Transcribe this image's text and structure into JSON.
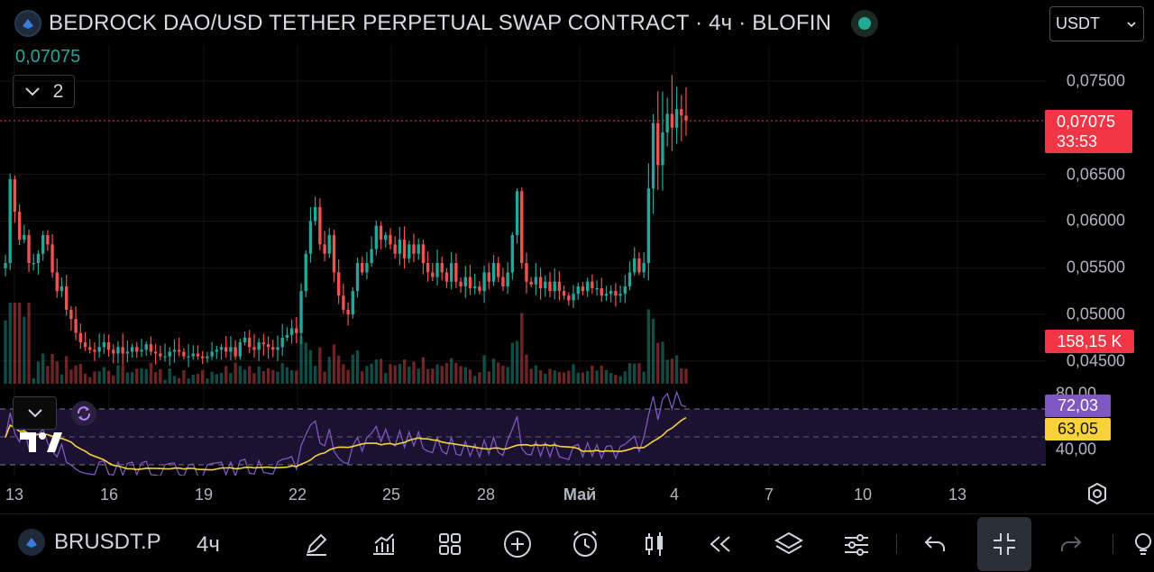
{
  "header": {
    "title": "BEDROCK DAO/USD TETHER PERPETUAL SWAP CONTRACT · 4ч · BLOFIN",
    "last_price": "0,07075",
    "collapse_count": "2",
    "currency": "USDT",
    "market_status_icon": "market-open-dot",
    "status_color": "#22ab94"
  },
  "price_axis": {
    "labels": [
      "0,07500",
      "0,06500",
      "0,06000",
      "0,05500",
      "0,05000",
      "0,04500"
    ],
    "current_price": "0,07075",
    "countdown": "33:53",
    "volume": "158,15 K"
  },
  "rsi": {
    "value": "72,03",
    "ma_value": "63,05",
    "levels": [
      "80,00",
      "40,00"
    ],
    "rsi_color": "#7e57c2",
    "ma_color": "#f7d23a"
  },
  "time_axis": {
    "labels": [
      "13",
      "16",
      "19",
      "22",
      "25",
      "28",
      "Май",
      "4",
      "7",
      "10",
      "13"
    ]
  },
  "toolbar": {
    "symbol": "BRUSDT.P",
    "interval": "4ч",
    "tools": [
      "pencil-icon",
      "indicators-icon",
      "layouts-icon",
      "add-icon",
      "alert-icon",
      "candles-icon",
      "replay-icon",
      "layers-icon",
      "settings-icon",
      "undo-icon",
      "fullscreen-exit-icon",
      "redo-icon",
      "idea-icon"
    ]
  },
  "colors": {
    "up": "#26a69a",
    "down": "#ef5350",
    "background": "#000000",
    "current_line": "#f23645"
  },
  "chart_data": {
    "type": "candlestick",
    "title": "BEDROCK DAO/USD TETHER PERPETUAL SWAP CONTRACT · 4ч · BLOFIN",
    "x_ticks": [
      "13",
      "16",
      "19",
      "22",
      "25",
      "28",
      "Май",
      "4",
      "7",
      "10",
      "13"
    ],
    "y_ticks": [
      0.075,
      0.065,
      0.06,
      0.055,
      0.05,
      0.045
    ],
    "ylim": [
      0.0445,
      0.0765
    ],
    "last_close": 0.07075,
    "closes": [
      0.0555,
      0.0645,
      0.061,
      0.058,
      0.0585,
      0.0555,
      0.0555,
      0.0565,
      0.0585,
      0.0575,
      0.0545,
      0.0525,
      0.053,
      0.0505,
      0.0495,
      0.048,
      0.047,
      0.0465,
      0.0462,
      0.046,
      0.0465,
      0.047,
      0.0462,
      0.0458,
      0.0465,
      0.0458,
      0.046,
      0.0465,
      0.046,
      0.0462,
      0.0468,
      0.046,
      0.0458,
      0.0455,
      0.0455,
      0.046,
      0.0462,
      0.046,
      0.0455,
      0.0455,
      0.0458,
      0.0455,
      0.0453,
      0.0455,
      0.046,
      0.0462,
      0.0465,
      0.046,
      0.0465,
      0.0455,
      0.047,
      0.0475,
      0.0465,
      0.0462,
      0.047,
      0.0468,
      0.0465,
      0.0462,
      0.0465,
      0.0475,
      0.0478,
      0.0485,
      0.048,
      0.0525,
      0.0565,
      0.06,
      0.0615,
      0.0575,
      0.0565,
      0.0585,
      0.0545,
      0.052,
      0.0505,
      0.05,
      0.0525,
      0.0555,
      0.0545,
      0.0555,
      0.057,
      0.0595,
      0.058,
      0.0585,
      0.0575,
      0.0565,
      0.058,
      0.056,
      0.0575,
      0.0565,
      0.0575,
      0.0555,
      0.0545,
      0.054,
      0.0555,
      0.0545,
      0.0535,
      0.0555,
      0.0535,
      0.053,
      0.054,
      0.0528,
      0.053,
      0.0525,
      0.0545,
      0.0535,
      0.0555,
      0.054,
      0.053,
      0.0545,
      0.0585,
      0.0632,
      0.0555,
      0.0535,
      0.0532,
      0.054,
      0.0528,
      0.0535,
      0.0525,
      0.0535,
      0.0525,
      0.052,
      0.0515,
      0.0522,
      0.053,
      0.0525,
      0.0535,
      0.0528,
      0.0528,
      0.052,
      0.0522,
      0.0525,
      0.052,
      0.0522,
      0.053,
      0.0545,
      0.056,
      0.0545,
      0.0555,
      0.0635,
      0.0705,
      0.066,
      0.0695,
      0.0715,
      0.07,
      0.072,
      0.0713,
      0.07075
    ],
    "rsi_levels": [
      80,
      40
    ],
    "rsi_last": 72.03,
    "rsi_ma_last": 63.05,
    "volume_last": "158,15 K"
  }
}
